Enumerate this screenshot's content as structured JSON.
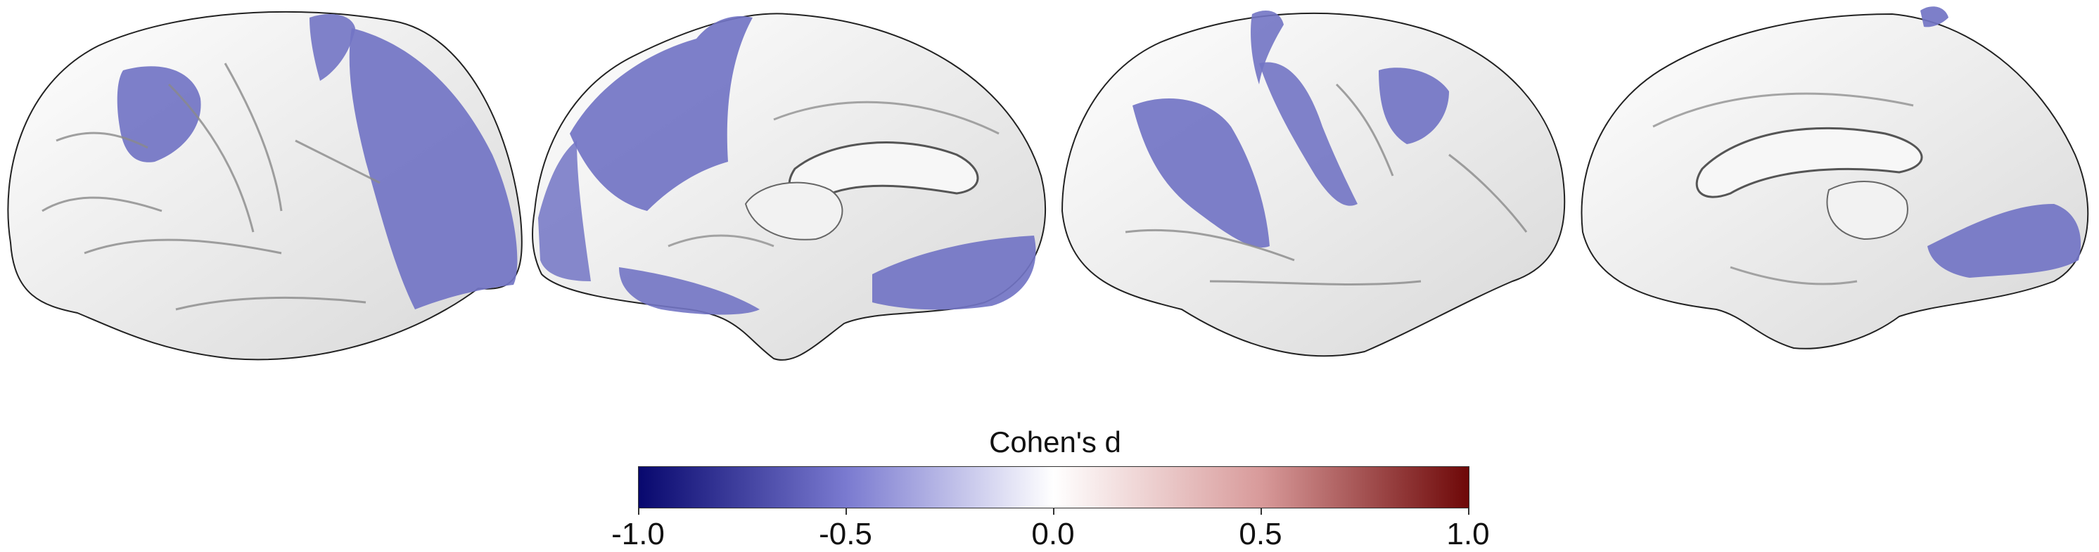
{
  "colorbar": {
    "title": "Cohen's d",
    "ticks": [
      "-1.0",
      "-0.5",
      "0.0",
      "0.5",
      "1.0"
    ],
    "gradient": [
      "#08086e",
      "#7a7ad0",
      "#ffffff",
      "#d89a9a",
      "#6e0808"
    ]
  },
  "colors": {
    "surface": "#eeeeee",
    "effect": "#7274c4",
    "sulcus": "#8a8a8a"
  },
  "views": [
    "left-lateral",
    "left-medial",
    "right-lateral",
    "right-medial"
  ]
}
